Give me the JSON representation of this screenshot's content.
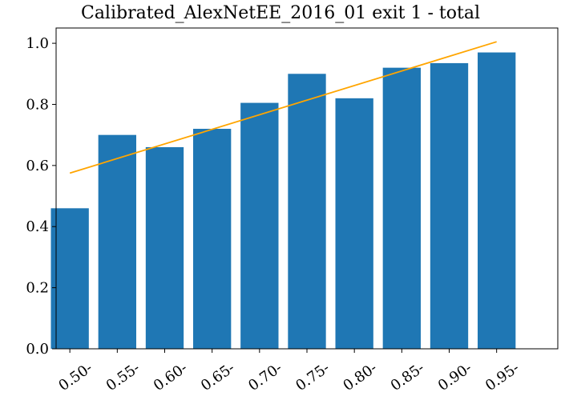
{
  "chart_data": {
    "type": "bar",
    "title": "Calibrated_AlexNetEE_2016_01 exit 1 - total",
    "categories": [
      "0.50-",
      "0.55-",
      "0.60-",
      "0.65-",
      "0.70-",
      "0.75-",
      "0.80-",
      "0.85-",
      "0.90-",
      "0.95-"
    ],
    "series": [
      {
        "type": "bar",
        "color": "#1f77b4",
        "values": [
          0.46,
          0.7,
          0.66,
          0.72,
          0.805,
          0.9,
          0.82,
          0.92,
          0.935,
          0.97
        ]
      },
      {
        "type": "line",
        "color": "#ffa500",
        "x": [
          0.5,
          0.95
        ],
        "values": [
          0.575,
          1.005
        ]
      }
    ],
    "xlim": [
      0.4855,
      1.0145
    ],
    "ylim": [
      0,
      1.05
    ],
    "yticks": [
      0.0,
      0.2,
      0.4,
      0.6,
      0.8,
      1.0
    ],
    "ytick_labels": [
      "0.0",
      "0.2",
      "0.4",
      "0.6",
      "0.8",
      "1.0"
    ],
    "grid": false,
    "xlabel": "",
    "ylabel": ""
  }
}
